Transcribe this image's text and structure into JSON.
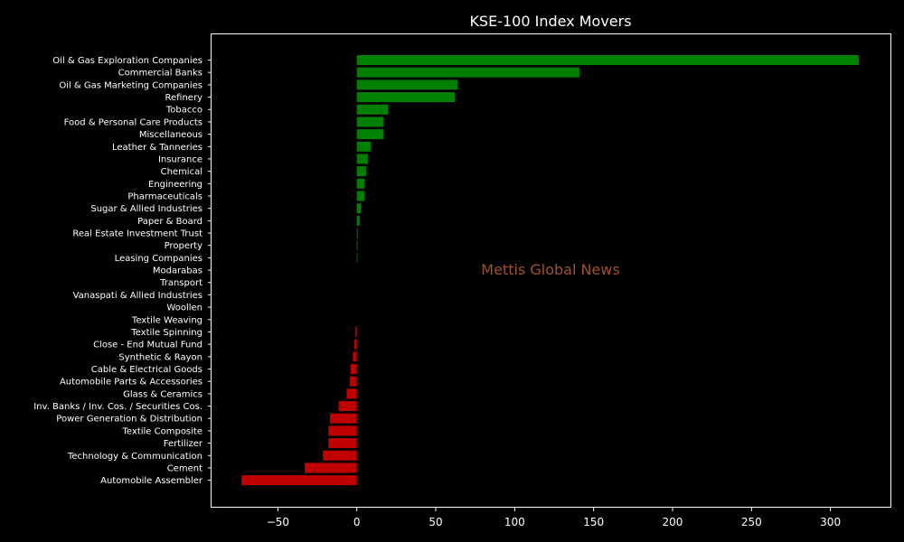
{
  "chart_data": {
    "type": "bar",
    "orientation": "horizontal",
    "title": "KSE-100 Index Movers",
    "watermark": "Mettis Global News",
    "xlabel": "",
    "ylabel": "",
    "xlim": [
      -92,
      338
    ],
    "xticks": [
      -50,
      0,
      50,
      100,
      150,
      200,
      250,
      300
    ],
    "grid": false,
    "legend": "none",
    "colors": {
      "background": "#000000",
      "positive": "#008000",
      "negative": "#c00000",
      "text": "#ffffff",
      "watermark": "#a0522d"
    },
    "categories": [
      "Oil & Gas Exploration Companies",
      "Commercial Banks",
      "Oil & Gas Marketing Companies",
      "Refinery",
      "Tobacco",
      "Food & Personal Care Products",
      "Miscellaneous",
      "Leather & Tanneries",
      "Insurance",
      "Chemical",
      "Engineering",
      "Pharmaceuticals",
      "Sugar & Allied Industries",
      "Paper & Board",
      "Real Estate Investment Trust",
      "Property",
      "Leasing Companies",
      "Modarabas",
      "Transport",
      "Vanaspati & Allied Industries",
      "Woollen",
      "Textile Weaving",
      "Textile Spinning",
      "Close - End Mutual Fund",
      "Synthetic & Rayon",
      "Cable & Electrical Goods",
      "Automobile Parts & Accessories",
      "Glass & Ceramics",
      "Inv. Banks / Inv. Cos. / Securities Cos.",
      "Power Generation & Distribution",
      "Textile Composite",
      "Fertilizer",
      "Technology & Communication",
      "Cement",
      "Automobile Assembler"
    ],
    "values": [
      318,
      141,
      64,
      62,
      20,
      17,
      17,
      9,
      7,
      6,
      5,
      5,
      2.5,
      1.8,
      0.6,
      0.5,
      0.4,
      0,
      0,
      0,
      0,
      0,
      -1,
      -1.5,
      -2.5,
      -4,
      -4.5,
      -6.5,
      -11.5,
      -17,
      -18,
      -18,
      -21.5,
      -33,
      -73
    ]
  }
}
